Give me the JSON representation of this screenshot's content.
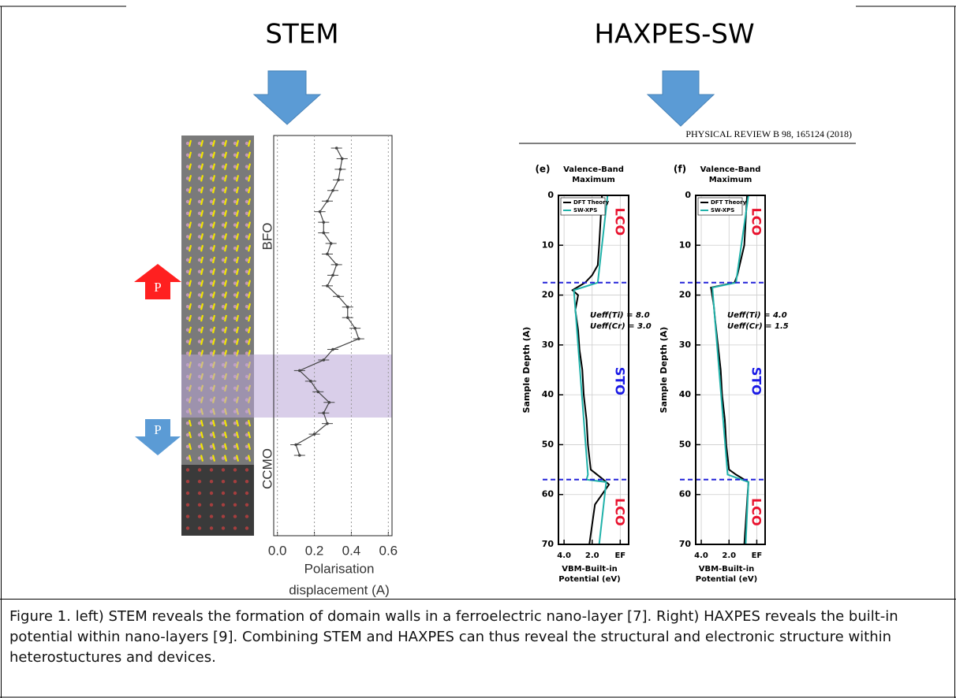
{
  "titles": [
    "STEM",
    "HAXPES-SW"
  ],
  "arrow_labels": [
    "P",
    "P"
  ],
  "journal": "PHYSICAL REVIEW B 98, 165124 (2018)",
  "chart_data": [
    {
      "type": "line",
      "layers": [
        "BFO",
        "CCMO"
      ],
      "xlabel": [
        "Polarisation",
        "displacement (A)"
      ],
      "xlim": [
        -0.02,
        0.62
      ],
      "xticks": [
        {
          "value": 0,
          "label": "0.0"
        },
        0.2,
        0.4,
        0.6
      ],
      "grid": true,
      "color": "#444444",
      "values": [
        0.32,
        0.35,
        0.34,
        0.33,
        0.3,
        0.27,
        0.23,
        0.25,
        0.25,
        0.29,
        0.27,
        0.32,
        0.3,
        0.27,
        0.33,
        0.38,
        0.38,
        0.42,
        0.44,
        0.3,
        0.25,
        0.12,
        0.18,
        0.22,
        0.28,
        0.25,
        0.27,
        0.2,
        0.1,
        0.12
      ],
      "errors": [
        0.03,
        0.03,
        0.03,
        0.03,
        0.03,
        0.03,
        0.03,
        0.03,
        0.03,
        0.03,
        0.03,
        0.03,
        0.03,
        0.03,
        0.03,
        0.03,
        0.03,
        0.03,
        0.03,
        0.03,
        0.03,
        0.03,
        0.03,
        0.03,
        0.03,
        0.03,
        0.03,
        0.03,
        0.03,
        0.03
      ]
    },
    {
      "type": "line",
      "panel": "(e)",
      "title": [
        "Valence-Band",
        "Maximum"
      ],
      "ylabel": "Sample Depth (A)",
      "xlabel": [
        "VBM-Built-in",
        "Potential (eV)"
      ],
      "ylim": [
        0,
        70
      ],
      "yticks": [
        0,
        10,
        20,
        30,
        40,
        50,
        60,
        70
      ],
      "xlim": [
        4.4,
        -0.6
      ],
      "xticks": [
        {
          "value": 4,
          "label": "4.0"
        },
        {
          "value": 2,
          "label": "2.0"
        },
        {
          "value": 0,
          "label": "EF"
        }
      ],
      "grid": true,
      "interfaces": [
        17.5,
        57
      ],
      "regions": [
        {
          "label": "LCO",
          "color": "#e8112d"
        },
        {
          "label": "STO",
          "color": "#1a1ae6"
        },
        {
          "label": "LCO",
          "color": "#e8112d"
        }
      ],
      "annotations": [
        "Ueff(Ti) = 8.0",
        "Ueff(Cr) = 3.0"
      ],
      "series": [
        {
          "name": "DFT Theory",
          "color": "#000000",
          "depth": [
            0,
            10,
            14,
            16,
            17.5,
            19,
            20,
            23,
            27,
            31,
            35,
            40,
            45,
            50,
            55,
            57,
            58,
            62,
            70
          ],
          "values": [
            1.3,
            1.5,
            1.6,
            2.0,
            2.5,
            3.4,
            3.0,
            3.2,
            3.0,
            2.9,
            2.7,
            2.6,
            2.4,
            2.3,
            2.1,
            1.2,
            0.8,
            1.8,
            2.2
          ]
        },
        {
          "name": "SW-XPS",
          "color": "#20b2aa",
          "depth": [
            0,
            17.5,
            19,
            56,
            57,
            57.5,
            70
          ],
          "values": [
            0.9,
            1.6,
            3.3,
            2.3,
            2.4,
            1.0,
            1.5
          ]
        }
      ]
    },
    {
      "type": "line",
      "panel": "(f)",
      "title": [
        "Valence-Band",
        "Maximum"
      ],
      "ylabel": "Sample Depth (A)",
      "xlabel": [
        "VBM-Built-in",
        "Potential (eV)"
      ],
      "ylim": [
        0,
        70
      ],
      "yticks": [
        0,
        10,
        20,
        30,
        40,
        50,
        60,
        70
      ],
      "xlim": [
        4.4,
        -0.6
      ],
      "xticks": [
        {
          "value": 4,
          "label": "4.0"
        },
        {
          "value": 2,
          "label": "2.0"
        },
        {
          "value": 0,
          "label": "EF"
        }
      ],
      "grid": true,
      "interfaces": [
        17.5,
        57
      ],
      "regions": [
        {
          "label": "LCO",
          "color": "#e8112d"
        },
        {
          "label": "STO",
          "color": "#1a1ae6"
        },
        {
          "label": "LCO",
          "color": "#e8112d"
        }
      ],
      "annotations": [
        "Ueff(Ti) = 4.0",
        "Ueff(Cr) = 1.5"
      ],
      "series": [
        {
          "name": "DFT Theory",
          "color": "#000000",
          "depth": [
            0,
            10,
            16,
            17.5,
            18.5,
            22,
            25,
            30,
            35,
            40,
            45,
            50,
            55,
            56,
            57.5,
            70
          ],
          "values": [
            0.7,
            0.9,
            1.4,
            1.6,
            3.3,
            3.1,
            3.0,
            2.8,
            2.6,
            2.5,
            2.3,
            2.2,
            2.0,
            1.5,
            0.6,
            0.9
          ]
        },
        {
          "name": "SW-XPS",
          "color": "#20b2aa",
          "depth": [
            0,
            17.5,
            18.5,
            56,
            57.5,
            70
          ],
          "values": [
            0.6,
            1.5,
            3.2,
            2.1,
            0.6,
            0.8
          ]
        }
      ]
    }
  ],
  "caption": "Figure 1. left) STEM reveals the formation of domain walls in a ferroelectric nano-layer [7]. Right) HAXPES reveals the built-in potential within nano-layers [9]. Combining STEM and HAXPES can thus reveal the structural and electronic structure within heterostuctures and devices."
}
